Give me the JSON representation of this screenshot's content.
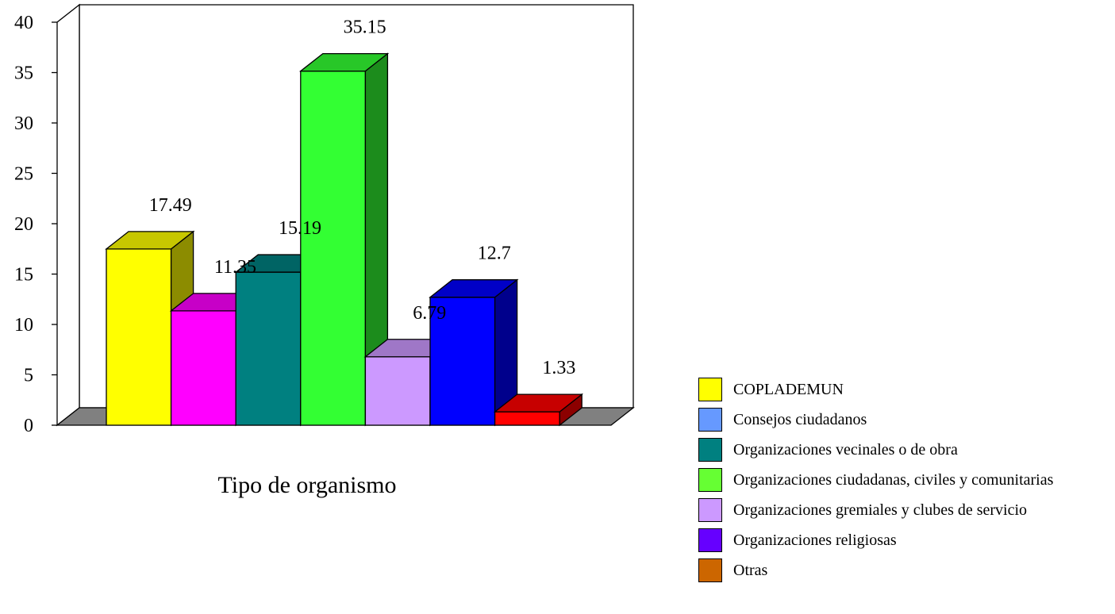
{
  "chart_data": {
    "type": "bar",
    "categories": [
      "COPLADEMUN",
      "Consejos ciudadanos",
      "Organizaciones vecinales o de obra",
      "Organizaciones ciudadanas, civiles y comunitarias",
      "Organizaciones  gremiales y clubes de servicio",
      "Organizaciones religiosas",
      "Otras"
    ],
    "values": [
      17.49,
      11.35,
      15.19,
      35.15,
      6.79,
      12.7,
      1.33
    ],
    "value_labels": [
      "17.49",
      "11.35",
      "15.19",
      "35.15",
      "6.79",
      "12.7",
      "1.33"
    ],
    "bar_colors": [
      "#ffff00",
      "#ff00ff",
      "#008080",
      "#33ff33",
      "#cc99ff",
      "#0000ff",
      "#ff0000"
    ],
    "legend_colors": [
      "#ffff00",
      "#6699ff",
      "#008080",
      "#66ff33",
      "#cc99ff",
      "#6600ff",
      "#cc6600"
    ],
    "xlabel": "Tipo de organismo",
    "ylabel": "",
    "ylim": [
      0,
      40
    ],
    "yticks": [
      "0",
      "5",
      "10",
      "15",
      "20",
      "25",
      "30",
      "35",
      "40"
    ],
    "grid": false,
    "legend_position": "right"
  }
}
